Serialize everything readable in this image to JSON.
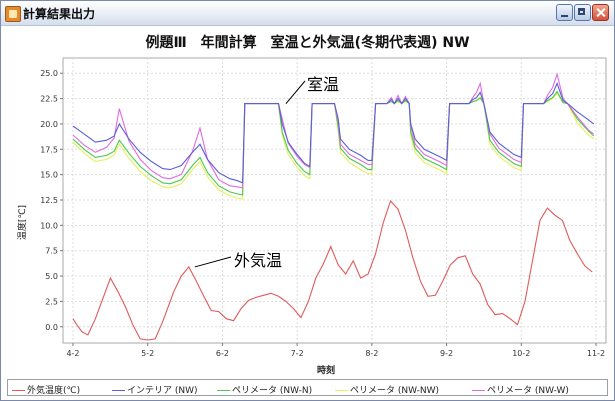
{
  "window": {
    "title": "計算結果出力",
    "app_icon": "java-app-icon",
    "controls": [
      "minimize-icon",
      "maximize-icon",
      "close-icon"
    ]
  },
  "chart_data": {
    "type": "line",
    "title": "例題Ⅲ　年間計算　室温と外気温(冬期代表週) NW",
    "xlabel": "時刻",
    "ylabel": "温度[℃]",
    "x_tick_labels": [
      "4-2",
      "5-2",
      "6-2",
      "7-2",
      "8-2",
      "9-2",
      "10-2",
      "11-2"
    ],
    "y_ticks": [
      0.0,
      2.5,
      5.0,
      7.5,
      10.0,
      12.5,
      15.0,
      17.5,
      20.0,
      22.5,
      25.0
    ],
    "y_tick_labels": [
      "0.0",
      "2.5",
      "5.0",
      "7.5",
      "10.0",
      "12.5",
      "15.0",
      "17.5",
      "20.0",
      "22.5",
      "25.0"
    ],
    "ylim": [
      -1.6,
      26.5
    ],
    "xlim": [
      0,
      7
    ],
    "grid": true,
    "legend_position": "bottom",
    "annotations": [
      {
        "text": "室温",
        "target": "インテリア (NW)",
        "at": {
          "x": 2.85,
          "y": 22.0
        }
      },
      {
        "text": "外気温",
        "target": "外気温度(℃)",
        "at": {
          "x": 1.63,
          "y": 5.9
        }
      }
    ],
    "series": [
      {
        "name": "外気温度(℃)",
        "color": "#e05a5a",
        "x": [
          0,
          0.05,
          0.12,
          0.2,
          0.3,
          0.4,
          0.5,
          0.6,
          0.7,
          0.8,
          0.9,
          1.0,
          1.1,
          1.2,
          1.25,
          1.35,
          1.45,
          1.55,
          1.65,
          1.75,
          1.85,
          1.95,
          2.05,
          2.15,
          2.25,
          2.35,
          2.45,
          2.55,
          2.65,
          2.75,
          2.85,
          2.95,
          3.05,
          3.15,
          3.25,
          3.35,
          3.45,
          3.55,
          3.65,
          3.75,
          3.85,
          3.95,
          4.05,
          4.15,
          4.25,
          4.35,
          4.45,
          4.55,
          4.65,
          4.75,
          4.85,
          4.95,
          5.05,
          5.15,
          5.25,
          5.35,
          5.45,
          5.55,
          5.65,
          5.75,
          5.85,
          5.95,
          6.05,
          6.15,
          6.25,
          6.35,
          6.45,
          6.55,
          6.65,
          6.75,
          6.85,
          6.95
        ],
        "values": [
          0.8,
          0.2,
          -0.5,
          -0.8,
          0.8,
          2.8,
          4.8,
          3.5,
          2.0,
          0.2,
          -1.2,
          -1.3,
          -1.2,
          0.5,
          1.5,
          3.5,
          5.0,
          5.9,
          4.5,
          3.0,
          1.6,
          1.5,
          0.8,
          0.6,
          1.8,
          2.6,
          2.9,
          3.1,
          3.3,
          3.0,
          2.5,
          1.8,
          0.9,
          2.5,
          4.8,
          6.2,
          7.9,
          6.1,
          5.2,
          6.5,
          4.8,
          5.2,
          7.2,
          10.2,
          12.4,
          11.6,
          9.5,
          6.8,
          4.5,
          3.0,
          3.1,
          4.5,
          6.1,
          6.8,
          7.0,
          5.2,
          4.2,
          2.2,
          1.2,
          1.3,
          0.8,
          0.2,
          2.5,
          6.5,
          10.5,
          11.7,
          11.0,
          10.5,
          8.5,
          7.2,
          6.0,
          5.4
        ]
      },
      {
        "name": "インテリア (NW)",
        "color": "#5b5fd8",
        "x": [
          0,
          0.15,
          0.3,
          0.45,
          0.55,
          0.62,
          0.75,
          0.9,
          1.05,
          1.2,
          1.3,
          1.45,
          1.6,
          1.7,
          1.8,
          1.95,
          2.1,
          2.2,
          2.27,
          2.3,
          2.75,
          2.8,
          2.88,
          3.0,
          3.1,
          3.17,
          3.2,
          3.5,
          3.55,
          3.58,
          3.7,
          3.85,
          3.95,
          4.0,
          4.05,
          4.2,
          4.26,
          4.3,
          4.35,
          4.4,
          4.45,
          4.5,
          4.52,
          4.58,
          4.7,
          4.9,
          5.0,
          5.04,
          5.3,
          5.35,
          5.4,
          5.45,
          5.5,
          5.58,
          5.7,
          5.9,
          6.0,
          6.03,
          6.3,
          6.35,
          6.42,
          6.48,
          6.56,
          6.62,
          6.75,
          6.9,
          6.97
        ],
        "values": [
          19.8,
          19.0,
          18.2,
          18.4,
          18.8,
          20.0,
          18.5,
          17.2,
          16.3,
          15.6,
          15.5,
          15.9,
          17.2,
          18.0,
          16.5,
          15.2,
          14.6,
          14.4,
          14.2,
          22.0,
          22.0,
          20.0,
          18.2,
          17.0,
          16.1,
          15.8,
          22.0,
          22.0,
          20.5,
          18.5,
          17.5,
          16.9,
          16.4,
          16.4,
          22.0,
          22.0,
          22.4,
          22.0,
          22.5,
          22.0,
          22.5,
          22.0,
          20.0,
          18.5,
          17.5,
          16.8,
          16.4,
          22.0,
          22.0,
          22.4,
          22.6,
          23.1,
          22.0,
          19.2,
          18.1,
          17.0,
          16.7,
          22.0,
          22.0,
          22.5,
          23.0,
          24.0,
          22.3,
          22.0,
          21.2,
          20.4,
          20.0
        ]
      },
      {
        "name": "ペリメータ (NW-N)",
        "color": "#49c94e",
        "x": [
          0,
          0.15,
          0.3,
          0.45,
          0.55,
          0.62,
          0.75,
          0.9,
          1.05,
          1.2,
          1.3,
          1.45,
          1.6,
          1.7,
          1.8,
          1.95,
          2.1,
          2.2,
          2.27,
          2.3,
          2.75,
          2.8,
          2.88,
          3.0,
          3.1,
          3.17,
          3.2,
          3.5,
          3.55,
          3.58,
          3.7,
          3.85,
          3.95,
          4.0,
          4.05,
          4.2,
          4.26,
          4.3,
          4.35,
          4.4,
          4.45,
          4.5,
          4.52,
          4.58,
          4.7,
          4.9,
          5.0,
          5.04,
          5.3,
          5.35,
          5.4,
          5.45,
          5.5,
          5.58,
          5.7,
          5.9,
          6.0,
          6.03,
          6.3,
          6.35,
          6.42,
          6.48,
          6.56,
          6.62,
          6.75,
          6.9,
          6.97
        ],
        "values": [
          18.5,
          17.5,
          16.7,
          16.9,
          17.3,
          18.4,
          17.1,
          15.8,
          14.9,
          14.2,
          14.1,
          14.5,
          15.9,
          16.7,
          15.2,
          13.9,
          13.3,
          13.1,
          13.0,
          22.0,
          22.0,
          19.2,
          17.4,
          16.1,
          15.3,
          15.0,
          22.0,
          22.0,
          19.7,
          17.6,
          16.6,
          16.0,
          15.5,
          15.5,
          22.0,
          22.0,
          22.2,
          22.0,
          22.3,
          22.0,
          22.3,
          22.0,
          19.2,
          17.6,
          16.6,
          15.9,
          15.5,
          22.0,
          22.0,
          22.2,
          22.3,
          22.6,
          22.0,
          18.4,
          17.2,
          16.1,
          15.8,
          22.0,
          22.0,
          22.3,
          22.6,
          23.2,
          22.1,
          22.0,
          20.5,
          19.3,
          18.8
        ]
      },
      {
        "name": "ペリメータ (NW-NW)",
        "color": "#e6f05a",
        "x": [
          0,
          0.15,
          0.3,
          0.45,
          0.55,
          0.62,
          0.75,
          0.9,
          1.05,
          1.2,
          1.3,
          1.45,
          1.6,
          1.7,
          1.8,
          1.95,
          2.1,
          2.2,
          2.27,
          2.3,
          2.75,
          2.8,
          2.88,
          3.0,
          3.1,
          3.17,
          3.2,
          3.5,
          3.55,
          3.58,
          3.7,
          3.85,
          3.95,
          4.0,
          4.05,
          4.2,
          4.26,
          4.3,
          4.35,
          4.4,
          4.45,
          4.5,
          4.52,
          4.58,
          4.7,
          4.9,
          5.0,
          5.04,
          5.3,
          5.35,
          5.4,
          5.45,
          5.5,
          5.58,
          5.7,
          5.9,
          6.0,
          6.03,
          6.3,
          6.35,
          6.42,
          6.48,
          6.56,
          6.62,
          6.75,
          6.9,
          6.97
        ],
        "values": [
          18.2,
          17.1,
          16.3,
          16.5,
          16.9,
          18.0,
          16.6,
          15.3,
          14.4,
          13.8,
          13.7,
          14.1,
          15.5,
          16.3,
          14.8,
          13.5,
          12.9,
          12.7,
          12.6,
          22.0,
          22.0,
          18.9,
          17.0,
          15.7,
          14.9,
          14.6,
          22.0,
          22.0,
          19.3,
          17.2,
          16.2,
          15.5,
          15.1,
          15.1,
          22.0,
          22.0,
          22.2,
          22.0,
          22.2,
          22.0,
          22.2,
          22.0,
          18.8,
          17.2,
          16.2,
          15.5,
          15.1,
          22.0,
          22.0,
          22.2,
          22.3,
          22.5,
          22.0,
          18.0,
          16.8,
          15.7,
          15.4,
          22.0,
          22.0,
          22.2,
          22.5,
          23.0,
          22.1,
          22.0,
          20.1,
          18.9,
          18.5
        ]
      },
      {
        "name": "ペリメータ (NW-W)",
        "color": "#e26ae2",
        "x": [
          0,
          0.15,
          0.3,
          0.45,
          0.55,
          0.62,
          0.75,
          0.9,
          1.05,
          1.2,
          1.3,
          1.45,
          1.6,
          1.7,
          1.8,
          1.95,
          2.1,
          2.2,
          2.27,
          2.3,
          2.75,
          2.8,
          2.88,
          3.0,
          3.1,
          3.17,
          3.2,
          3.5,
          3.55,
          3.58,
          3.7,
          3.85,
          3.95,
          4.0,
          4.05,
          4.2,
          4.26,
          4.3,
          4.35,
          4.4,
          4.45,
          4.5,
          4.52,
          4.58,
          4.7,
          4.9,
          5.0,
          5.04,
          5.3,
          5.35,
          5.4,
          5.45,
          5.5,
          5.58,
          5.7,
          5.9,
          6.0,
          6.03,
          6.3,
          6.35,
          6.42,
          6.48,
          6.56,
          6.62,
          6.75,
          6.9,
          6.97
        ],
        "values": [
          18.9,
          17.9,
          17.2,
          17.7,
          18.6,
          21.5,
          18.3,
          16.5,
          15.4,
          14.7,
          14.6,
          15.0,
          17.3,
          19.6,
          16.5,
          14.5,
          13.9,
          13.8,
          13.7,
          22.0,
          22.0,
          20.5,
          18.1,
          16.8,
          16.0,
          15.7,
          22.0,
          22.0,
          20.2,
          18.0,
          17.0,
          16.4,
          16.0,
          16.0,
          22.0,
          22.0,
          22.6,
          22.0,
          22.8,
          22.0,
          22.7,
          22.0,
          19.8,
          18.0,
          17.0,
          16.3,
          15.9,
          22.0,
          22.0,
          22.6,
          23.1,
          24.0,
          22.0,
          19.0,
          17.6,
          16.5,
          16.2,
          22.0,
          22.0,
          22.8,
          23.6,
          24.9,
          22.5,
          22.0,
          20.7,
          19.4,
          19.0
        ]
      }
    ]
  }
}
